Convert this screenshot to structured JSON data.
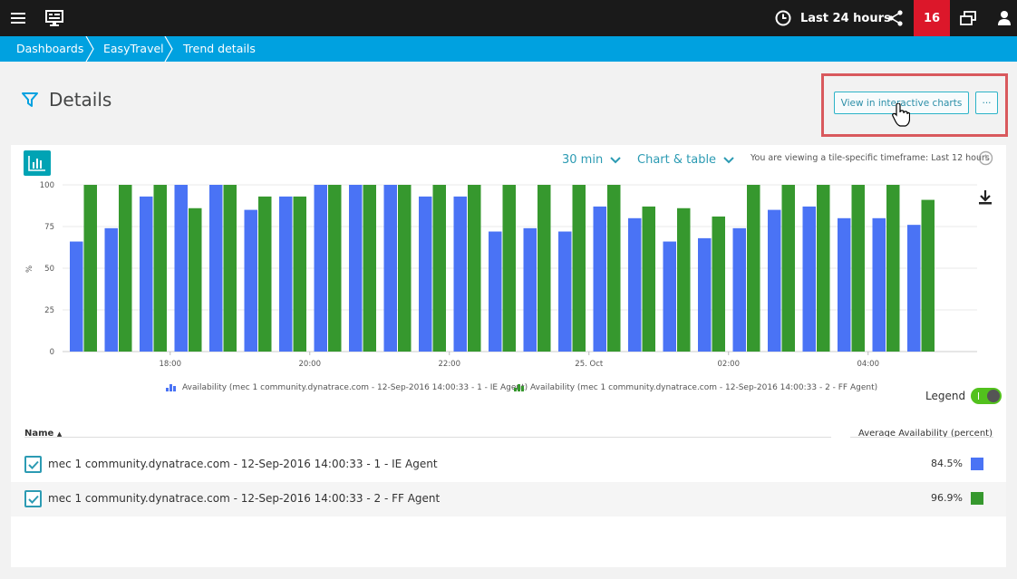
{
  "topbar": {
    "timeframe_label": "Last 24 hours",
    "problems_count": "16",
    "icons": [
      "menu-icon",
      "dashboard-icon",
      "clock-icon",
      "share-icon",
      "windows-icon",
      "user-icon"
    ]
  },
  "breadcrumb": [
    "Dashboards",
    "EasyTravel",
    "Trend details"
  ],
  "header": {
    "title": "Details",
    "view_button": "View in interactive charts",
    "more_button": "···"
  },
  "controls": {
    "resolution": "30 min",
    "display_mode": "Chart & table",
    "timeframe_note": "You are viewing a tile-specific timeframe: Last 12 hours"
  },
  "colors": {
    "ie": "#4a73f5",
    "ff": "#36982e",
    "accent": "#00a1e0",
    "problems": "#dc172a"
  },
  "chart_data": {
    "type": "bar",
    "ylabel": "%",
    "ylim": [
      0,
      100
    ],
    "yticks": [
      "0",
      "25",
      "50",
      "75",
      "100"
    ],
    "xticks": [
      {
        "label": "18:00",
        "index": 2.5
      },
      {
        "label": "20:00",
        "index": 6.5
      },
      {
        "label": "22:00",
        "index": 10.5
      },
      {
        "label": "25. Oct",
        "index": 14.5
      },
      {
        "label": "02:00",
        "index": 18.5
      },
      {
        "label": "04:00",
        "index": 22.5
      }
    ],
    "series": [
      {
        "name": "Availability (mec 1 community.dynatrace.com - 12-Sep-2016 14:00:33 - 1 - IE Agent)",
        "color": "#4a73f5",
        "values": [
          66,
          74,
          93,
          100,
          100,
          85,
          93,
          100,
          100,
          100,
          93,
          93,
          72,
          74,
          72,
          87,
          80,
          66,
          68,
          74,
          85,
          87,
          80,
          80,
          76
        ]
      },
      {
        "name": "Availability (mec 1 community.dynatrace.com - 12-Sep-2016 14:00:33 - 2 - FF Agent)",
        "color": "#36982e",
        "values": [
          100,
          100,
          100,
          86,
          100,
          93,
          93,
          100,
          100,
          100,
          100,
          100,
          100,
          100,
          100,
          100,
          87,
          86,
          81,
          100,
          100,
          100,
          100,
          100,
          91
        ]
      }
    ]
  },
  "legend": {
    "label": "Legend",
    "toggle_text": "I"
  },
  "table": {
    "col_name": "Name",
    "col_value": "Average Availability (percent)",
    "rows": [
      {
        "name": "mec 1 community.dynatrace.com - 12-Sep-2016 14:00:33 - 1 - IE Agent",
        "value": "84.5%",
        "color": "#4a73f5"
      },
      {
        "name": "mec 1 community.dynatrace.com - 12-Sep-2016 14:00:33 - 2 - FF Agent",
        "value": "96.9%",
        "color": "#36982e"
      }
    ]
  }
}
